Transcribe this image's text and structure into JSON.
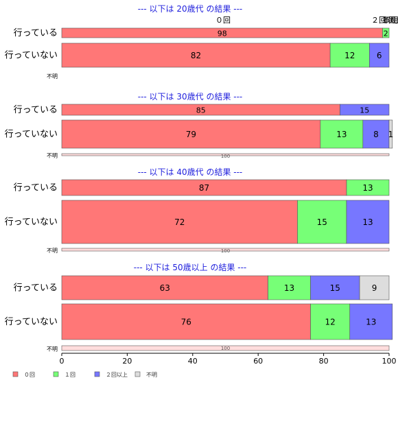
{
  "chart_data": {
    "type": "bar",
    "orientation": "horizontal",
    "stacked": true,
    "percent": true,
    "xlim": [
      0,
      100
    ],
    "x_ticks": [
      0,
      20,
      40,
      60,
      80,
      100
    ],
    "legend": [
      "０回",
      "１回",
      "２回以上",
      "不明"
    ],
    "legend_position": "bottom-left",
    "colors": [
      "#ff7777",
      "#77ff77",
      "#7777ff",
      "#dddddd"
    ],
    "top_category_labels": [
      "０回",
      "２回以上",
      "１回",
      "不明"
    ],
    "panels": [
      {
        "title": "--- 以下は 20歳代 の結果 ---",
        "categories": [
          "行っている",
          "行っていない",
          "不明"
        ],
        "series": [
          {
            "name": "０回",
            "values": [
              98,
              82,
              0
            ]
          },
          {
            "name": "１回",
            "values": [
              2,
              12,
              0
            ]
          },
          {
            "name": "２回以上",
            "values": [
              0,
              6,
              0
            ]
          },
          {
            "name": "不明",
            "values": [
              0,
              0,
              0
            ]
          }
        ]
      },
      {
        "title": "--- 以下は 30歳代 の結果 ---",
        "categories": [
          "行っている",
          "行っていない",
          "不明"
        ],
        "series": [
          {
            "name": "０回",
            "values": [
              85,
              79,
              100
            ]
          },
          {
            "name": "１回",
            "values": [
              0,
              13,
              0
            ]
          },
          {
            "name": "２回以上",
            "values": [
              15,
              8,
              0
            ]
          },
          {
            "name": "不明",
            "values": [
              0,
              1,
              0
            ]
          }
        ]
      },
      {
        "title": "--- 以下は 40歳代 の結果 ---",
        "categories": [
          "行っている",
          "行っていない",
          "不明"
        ],
        "series": [
          {
            "name": "０回",
            "values": [
              87,
              72,
              100
            ]
          },
          {
            "name": "１回",
            "values": [
              13,
              15,
              0
            ]
          },
          {
            "name": "２回以上",
            "values": [
              0,
              13,
              0
            ]
          },
          {
            "name": "不明",
            "values": [
              0,
              0,
              0
            ]
          }
        ]
      },
      {
        "title": "--- 以下は 50歳以上 の結果 ---",
        "categories": [
          "行っている",
          "行っていない",
          "不明"
        ],
        "series": [
          {
            "name": "０回",
            "values": [
              63,
              76,
              100
            ]
          },
          {
            "name": "１回",
            "values": [
              13,
              12,
              0
            ]
          },
          {
            "name": "２回以上",
            "values": [
              15,
              13,
              0
            ]
          },
          {
            "name": "不明",
            "values": [
              9,
              0,
              0
            ]
          }
        ]
      }
    ]
  }
}
